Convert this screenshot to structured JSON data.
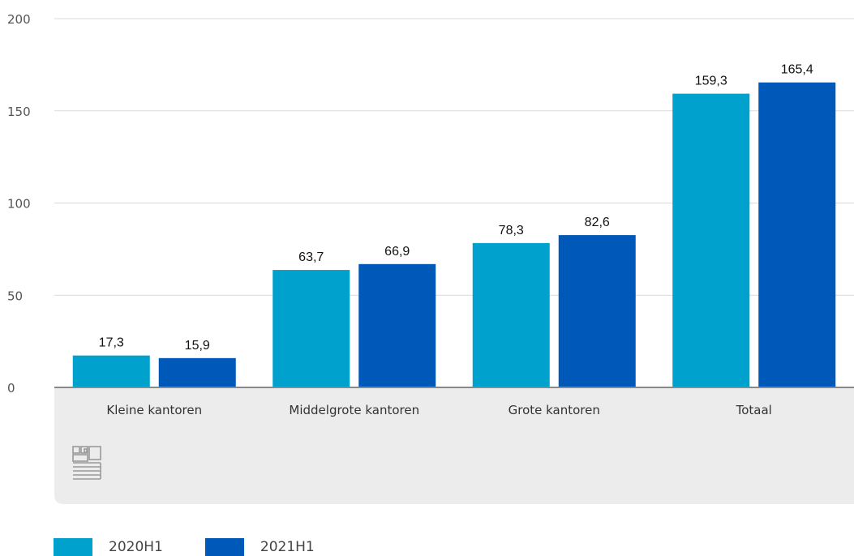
{
  "chart_data": {
    "type": "bar",
    "categories": [
      "Kleine kantoren",
      "Middelgrote kantoren",
      "Grote kantoren",
      "Totaal"
    ],
    "series": [
      {
        "name": "2020H1",
        "values": [
          17.3,
          63.7,
          78.3,
          159.3
        ],
        "labels": [
          "17,3",
          "63,7",
          "78,3",
          "159,3"
        ],
        "color": "#00a1cd"
      },
      {
        "name": "2021H1",
        "values": [
          15.9,
          66.9,
          82.6,
          165.4
        ],
        "labels": [
          "15,9",
          "66,9",
          "82,6",
          "165,4"
        ],
        "color": "#0058b8"
      }
    ],
    "yticks": [
      "0",
      "50",
      "100",
      "150",
      "200"
    ],
    "ylim": [
      0,
      200
    ],
    "grid": true,
    "legend_position": "bottom-left"
  },
  "logo": {
    "icon": "cbs-logo-icon",
    "color": "#9a9a9a"
  },
  "colors": {
    "axis_band": "#ececec",
    "gridline": "#d9d9d9",
    "baseline": "#888888"
  }
}
